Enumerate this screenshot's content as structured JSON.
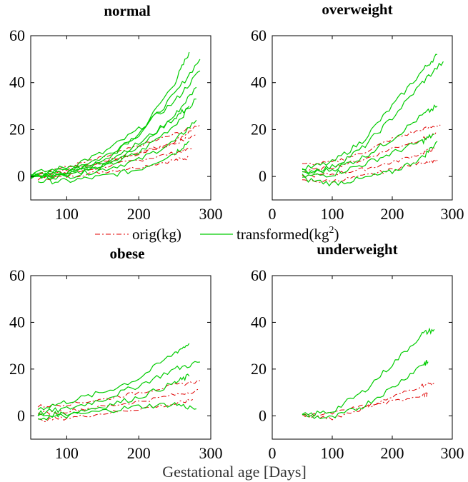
{
  "chart_data": [
    {
      "type": "line",
      "title": "normal",
      "xlim": [
        50,
        300
      ],
      "ylim": [
        -10,
        60
      ],
      "xticks": [
        100,
        200,
        300
      ],
      "yticks": [
        0,
        20,
        40,
        60
      ],
      "series": [
        {
          "name": "orig(kg)",
          "x": [
            60,
            100,
            150,
            200,
            250,
            280
          ],
          "values": [
            0,
            2,
            6,
            10,
            14,
            18
          ]
        },
        {
          "name": "orig(kg)",
          "x": [
            60,
            100,
            150,
            200,
            250,
            275
          ],
          "values": [
            0,
            1,
            4,
            7,
            10,
            12
          ]
        },
        {
          "name": "orig(kg)",
          "x": [
            60,
            100,
            150,
            200,
            250,
            270
          ],
          "values": [
            -1,
            0,
            2,
            4,
            7,
            8
          ]
        },
        {
          "name": "orig(kg)",
          "x": [
            60,
            100,
            150,
            200,
            250,
            285
          ],
          "values": [
            2,
            4,
            8,
            13,
            18,
            22
          ]
        },
        {
          "name": "orig(kg)",
          "x": [
            60,
            100,
            150,
            200,
            250,
            275
          ],
          "values": [
            1,
            3,
            6,
            10,
            15,
            20
          ]
        },
        {
          "name": "transformed(kg²)",
          "x": [
            50,
            100,
            150,
            200,
            250,
            270
          ],
          "values": [
            0,
            2,
            6,
            18,
            40,
            53
          ]
        },
        {
          "name": "transformed(kg²)",
          "x": [
            50,
            100,
            150,
            200,
            250,
            285
          ],
          "values": [
            0,
            3,
            8,
            18,
            35,
            50
          ]
        },
        {
          "name": "transformed(kg²)",
          "x": [
            50,
            100,
            150,
            200,
            250,
            280
          ],
          "values": [
            0,
            2,
            5,
            12,
            26,
            38
          ]
        },
        {
          "name": "transformed(kg²)",
          "x": [
            50,
            100,
            150,
            200,
            250,
            280
          ],
          "values": [
            0,
            1,
            4,
            10,
            22,
            33
          ]
        },
        {
          "name": "transformed(kg²)",
          "x": [
            50,
            100,
            150,
            200,
            250,
            280
          ],
          "values": [
            0,
            0,
            3,
            7,
            15,
            24
          ]
        },
        {
          "name": "transformed(kg²)",
          "x": [
            60,
            100,
            150,
            200,
            250,
            270
          ],
          "values": [
            -2,
            -2,
            0,
            3,
            10,
            15
          ]
        },
        {
          "name": "transformed(kg²)",
          "x": [
            50,
            100,
            150,
            200,
            250,
            285
          ],
          "values": [
            1,
            4,
            10,
            20,
            32,
            45
          ]
        },
        {
          "name": "transformed(kg²)",
          "x": [
            50,
            100,
            150,
            200,
            250,
            270
          ],
          "values": [
            0,
            2,
            6,
            14,
            25,
            30
          ]
        }
      ]
    },
    {
      "type": "line",
      "title": "overweight",
      "xlim": [
        0,
        300
      ],
      "ylim": [
        -10,
        60
      ],
      "xticks": [
        0,
        100,
        200,
        300
      ],
      "yticks": [
        0,
        20,
        40,
        60
      ],
      "series": [
        {
          "name": "orig(kg)",
          "x": [
            50,
            100,
            150,
            200,
            250,
            280
          ],
          "values": [
            5,
            6,
            10,
            16,
            20,
            22
          ]
        },
        {
          "name": "orig(kg)",
          "x": [
            50,
            100,
            150,
            200,
            250,
            275
          ],
          "values": [
            2,
            4,
            7,
            12,
            16,
            18
          ]
        },
        {
          "name": "orig(kg)",
          "x": [
            50,
            100,
            150,
            200,
            250,
            270
          ],
          "values": [
            0,
            1,
            3,
            6,
            10,
            12
          ]
        },
        {
          "name": "orig(kg)",
          "x": [
            50,
            100,
            150,
            200,
            250,
            275
          ],
          "values": [
            -2,
            -2,
            0,
            3,
            6,
            7
          ]
        },
        {
          "name": "transformed(kg²)",
          "x": [
            50,
            100,
            150,
            200,
            250,
            275
          ],
          "values": [
            3,
            6,
            15,
            30,
            45,
            52
          ]
        },
        {
          "name": "transformed(kg²)",
          "x": [
            50,
            100,
            150,
            200,
            250,
            285
          ],
          "values": [
            2,
            4,
            12,
            25,
            40,
            49
          ]
        },
        {
          "name": "transformed(kg²)",
          "x": [
            50,
            100,
            150,
            200,
            250,
            275
          ],
          "values": [
            1,
            3,
            8,
            16,
            26,
            30
          ]
        },
        {
          "name": "transformed(kg²)",
          "x": [
            50,
            100,
            150,
            200,
            250,
            270
          ],
          "values": [
            0,
            1,
            5,
            10,
            15,
            18
          ]
        },
        {
          "name": "transformed(kg²)",
          "x": [
            50,
            100,
            150,
            200,
            250,
            275
          ],
          "values": [
            -1,
            -3,
            -1,
            2,
            8,
            15
          ]
        }
      ]
    },
    {
      "type": "line",
      "title": "obese",
      "xlim": [
        50,
        300
      ],
      "ylim": [
        -10,
        60
      ],
      "xticks": [
        100,
        200,
        300
      ],
      "yticks": [
        0,
        20,
        40,
        60
      ],
      "series": [
        {
          "name": "orig(kg)",
          "x": [
            60,
            100,
            150,
            200,
            250,
            285
          ],
          "values": [
            4,
            5,
            7,
            10,
            13,
            15
          ]
        },
        {
          "name": "orig(kg)",
          "x": [
            60,
            100,
            150,
            200,
            250,
            285
          ],
          "values": [
            1,
            2,
            4,
            6,
            9,
            11
          ]
        },
        {
          "name": "orig(kg)",
          "x": [
            60,
            100,
            150,
            200,
            250,
            275
          ],
          "values": [
            -2,
            -1,
            1,
            3,
            5,
            7
          ]
        },
        {
          "name": "transformed(kg²)",
          "x": [
            60,
            100,
            150,
            200,
            250,
            270
          ],
          "values": [
            3,
            6,
            10,
            16,
            27,
            31
          ]
        },
        {
          "name": "transformed(kg²)",
          "x": [
            60,
            100,
            150,
            200,
            250,
            285
          ],
          "values": [
            1,
            3,
            7,
            13,
            20,
            23
          ]
        },
        {
          "name": "transformed(kg²)",
          "x": [
            60,
            100,
            150,
            200,
            250,
            270
          ],
          "values": [
            0,
            1,
            4,
            8,
            14,
            17
          ]
        },
        {
          "name": "transformed(kg²)",
          "x": [
            60,
            100,
            150,
            200,
            250,
            280
          ],
          "values": [
            -1,
            0,
            2,
            4,
            5,
            3
          ]
        }
      ]
    },
    {
      "type": "line",
      "title": "underweight",
      "xlim": [
        0,
        300
      ],
      "ylim": [
        -10,
        60
      ],
      "xticks": [
        0,
        100,
        200,
        300
      ],
      "yticks": [
        0,
        20,
        40,
        60
      ],
      "series": [
        {
          "name": "orig(kg)",
          "x": [
            50,
            100,
            150,
            200,
            250,
            270
          ],
          "values": [
            0,
            -1,
            3,
            8,
            13,
            14
          ]
        },
        {
          "name": "orig(kg)",
          "x": [
            50,
            100,
            150,
            200,
            250,
            260
          ],
          "values": [
            0,
            1,
            4,
            6,
            9,
            9
          ]
        },
        {
          "name": "transformed(kg²)",
          "x": [
            50,
            100,
            150,
            200,
            250,
            270
          ],
          "values": [
            0,
            2,
            10,
            22,
            35,
            37
          ]
        },
        {
          "name": "transformed(kg²)",
          "x": [
            50,
            100,
            150,
            200,
            250,
            260
          ],
          "values": [
            0,
            -1,
            4,
            12,
            22,
            23
          ]
        }
      ]
    }
  ],
  "legend": {
    "orig_label": "orig(kg)",
    "trans_label_base": "transformed(kg",
    "trans_label_sup": "2",
    "trans_label_end": ")"
  },
  "xlabel": "Gestational age [Days]",
  "colors": {
    "orig": "#e00000",
    "transformed": "#00cc00"
  }
}
